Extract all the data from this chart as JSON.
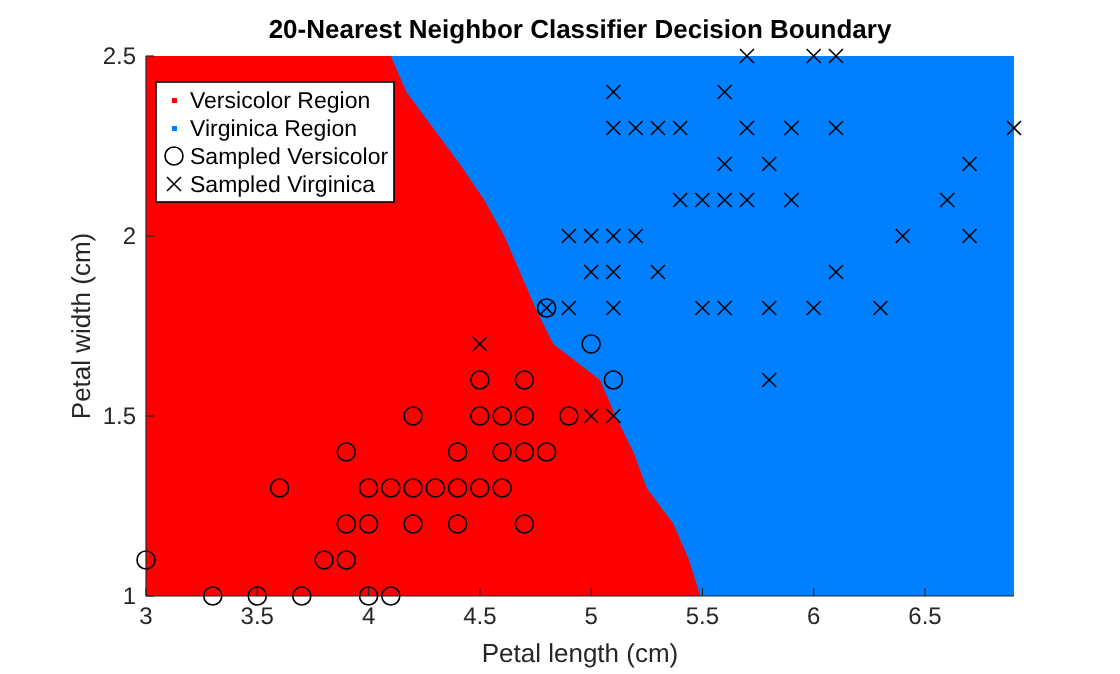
{
  "chart_data": {
    "type": "scatter",
    "title": "20-Nearest Neighbor Classifier Decision Boundary",
    "xlabel": "Petal length (cm)",
    "ylabel": "Petal width (cm)",
    "xlim": [
      3,
      6.9
    ],
    "ylim": [
      1,
      2.5
    ],
    "xticks": [
      3,
      3.5,
      4,
      4.5,
      5,
      5.5,
      6,
      6.5
    ],
    "yticks": [
      1,
      1.5,
      2,
      2.5
    ],
    "grid": false,
    "legend": "top left",
    "series": [
      {
        "name": "Versicolor Region",
        "type": "area",
        "color": "#ff0000",
        "x": [
          3,
          4.1,
          4.17,
          4.29,
          4.41,
          4.52,
          4.61,
          4.68,
          4.75,
          4.83,
          5.04,
          5.11,
          5.19,
          5.25,
          5.37,
          5.44,
          5.49
        ],
        "values": [
          2.5,
          2.5,
          2.4,
          2.3,
          2.2,
          2.1,
          2.0,
          1.9,
          1.8,
          1.7,
          1.6,
          1.5,
          1.4,
          1.3,
          1.2,
          1.1,
          1.0
        ]
      },
      {
        "name": "Virginica Region",
        "type": "area",
        "color": "#0080ff",
        "x": [
          4.1,
          6.9
        ],
        "values": [
          2.5,
          2.5
        ]
      },
      {
        "name": "Sampled Versicolor",
        "marker": "circle",
        "color": "#000000",
        "x": [
          3.3,
          3.5,
          3.7,
          4.0,
          4.1,
          3.0,
          3.8,
          3.9,
          3.9,
          4.0,
          4.2,
          4.4,
          4.7,
          3.6,
          4.0,
          4.1,
          4.2,
          4.3,
          4.4,
          4.5,
          4.6,
          3.9,
          4.4,
          4.6,
          4.7,
          4.8,
          4.2,
          4.5,
          4.6,
          4.7,
          4.9,
          4.5,
          4.7,
          5.1,
          5.0,
          4.8
        ],
        "values": [
          1.0,
          1.0,
          1.0,
          1.0,
          1.0,
          1.1,
          1.1,
          1.1,
          1.2,
          1.2,
          1.2,
          1.2,
          1.2,
          1.3,
          1.3,
          1.3,
          1.3,
          1.3,
          1.3,
          1.3,
          1.3,
          1.4,
          1.4,
          1.4,
          1.4,
          1.4,
          1.5,
          1.5,
          1.5,
          1.5,
          1.5,
          1.6,
          1.6,
          1.6,
          1.7,
          1.8
        ]
      },
      {
        "name": "Sampled Virginica",
        "marker": "cross",
        "color": "#000000",
        "x": [
          5.0,
          5.1,
          5.8,
          4.5,
          4.8,
          4.9,
          5.1,
          5.5,
          5.6,
          5.8,
          6.0,
          6.3,
          5.0,
          5.1,
          5.3,
          6.1,
          4.9,
          5.0,
          5.1,
          5.2,
          6.4,
          6.7,
          5.4,
          5.5,
          5.6,
          5.7,
          5.9,
          6.6,
          5.6,
          5.8,
          6.7,
          5.1,
          5.2,
          5.3,
          5.4,
          5.7,
          5.9,
          6.1,
          6.9,
          5.1,
          5.6,
          5.7,
          6.0,
          6.1
        ],
        "values": [
          1.5,
          1.5,
          1.6,
          1.7,
          1.8,
          1.8,
          1.8,
          1.8,
          1.8,
          1.8,
          1.8,
          1.8,
          1.9,
          1.9,
          1.9,
          1.9,
          2.0,
          2.0,
          2.0,
          2.0,
          2.0,
          2.0,
          2.1,
          2.1,
          2.1,
          2.1,
          2.1,
          2.1,
          2.2,
          2.2,
          2.2,
          2.3,
          2.3,
          2.3,
          2.3,
          2.3,
          2.3,
          2.3,
          2.3,
          2.4,
          2.4,
          2.5,
          2.5,
          2.5
        ]
      }
    ]
  }
}
